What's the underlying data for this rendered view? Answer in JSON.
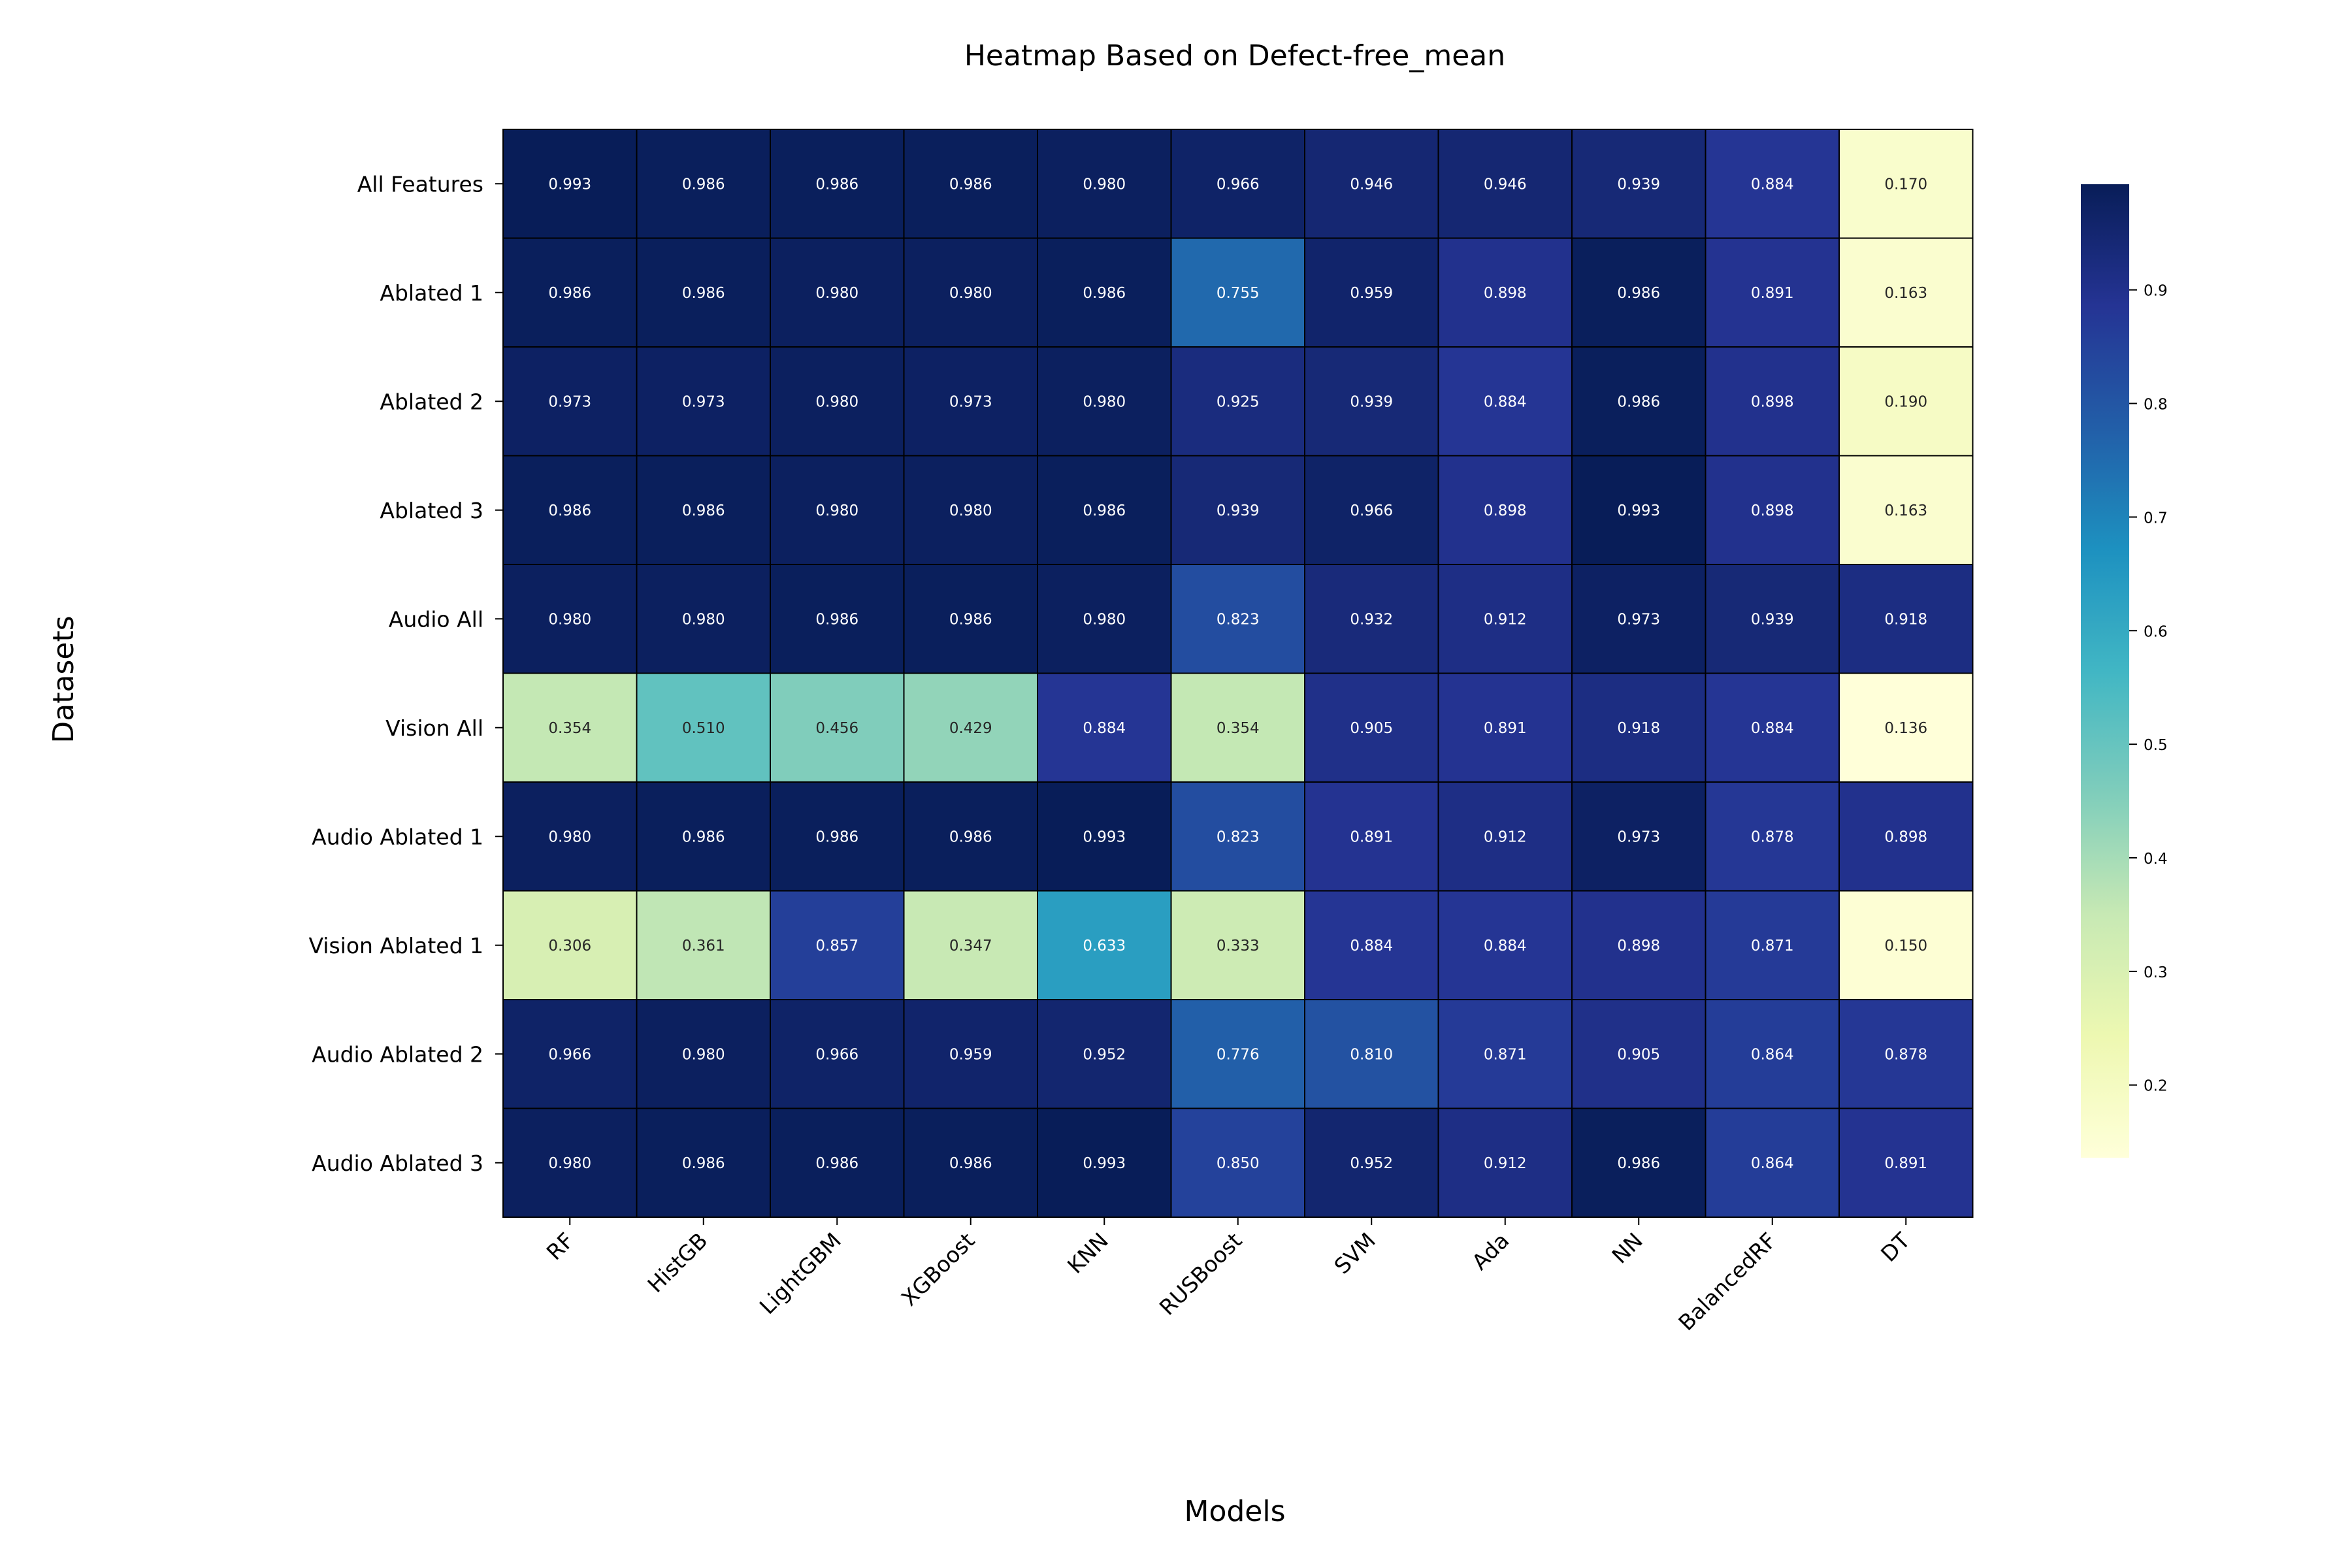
{
  "chart_data": {
    "type": "heatmap",
    "title": "Heatmap Based on Defect-free_mean",
    "xlabel": "Models",
    "ylabel": "Datasets",
    "columns": [
      "RF",
      "HistGB",
      "LightGBM",
      "XGBoost",
      "KNN",
      "RUSBoost",
      "SVM",
      "Ada",
      "NN",
      "BalancedRF",
      "DT"
    ],
    "rows": [
      "All Features",
      "Ablated 1",
      "Ablated 2",
      "Ablated 3",
      "Audio All",
      "Vision All",
      "Audio Ablated 1",
      "Vision Ablated 1",
      "Audio Ablated 2",
      "Audio Ablated 3"
    ],
    "values": [
      [
        0.993,
        0.986,
        0.986,
        0.986,
        0.98,
        0.966,
        0.946,
        0.946,
        0.939,
        0.884,
        0.17
      ],
      [
        0.986,
        0.986,
        0.98,
        0.98,
        0.986,
        0.755,
        0.959,
        0.898,
        0.986,
        0.891,
        0.163
      ],
      [
        0.973,
        0.973,
        0.98,
        0.973,
        0.98,
        0.925,
        0.939,
        0.884,
        0.986,
        0.898,
        0.19
      ],
      [
        0.986,
        0.986,
        0.98,
        0.98,
        0.986,
        0.939,
        0.966,
        0.898,
        0.993,
        0.898,
        0.163
      ],
      [
        0.98,
        0.98,
        0.986,
        0.986,
        0.98,
        0.823,
        0.932,
        0.912,
        0.973,
        0.939,
        0.918
      ],
      [
        0.354,
        0.51,
        0.456,
        0.429,
        0.884,
        0.354,
        0.905,
        0.891,
        0.918,
        0.884,
        0.136
      ],
      [
        0.98,
        0.986,
        0.986,
        0.986,
        0.993,
        0.823,
        0.891,
        0.912,
        0.973,
        0.878,
        0.898
      ],
      [
        0.306,
        0.361,
        0.857,
        0.347,
        0.633,
        0.333,
        0.884,
        0.884,
        0.898,
        0.871,
        0.15
      ],
      [
        0.966,
        0.98,
        0.966,
        0.959,
        0.952,
        0.776,
        0.81,
        0.871,
        0.905,
        0.864,
        0.878
      ],
      [
        0.98,
        0.986,
        0.986,
        0.986,
        0.993,
        0.85,
        0.952,
        0.912,
        0.986,
        0.864,
        0.891
      ]
    ],
    "value_format": "3 decimals",
    "colormap": "YlGnBu",
    "colormap_stops": [
      "#ffffd9",
      "#edf8b1",
      "#c7e9b4",
      "#7fcdbb",
      "#41b6c4",
      "#1d91c0",
      "#225ea8",
      "#253494",
      "#081d58"
    ],
    "vmin": 0.136,
    "vmax": 0.993,
    "colorbar_ticks": [
      0.2,
      0.3,
      0.4,
      0.5,
      0.6,
      0.7,
      0.8,
      0.9
    ],
    "colorbar_tick_labels": [
      "0.2",
      "0.3",
      "0.4",
      "0.5",
      "0.6",
      "0.7",
      "0.8",
      "0.9"
    ],
    "cell_border_color": "#000000",
    "x_tick_rotation": "45 degrees"
  }
}
